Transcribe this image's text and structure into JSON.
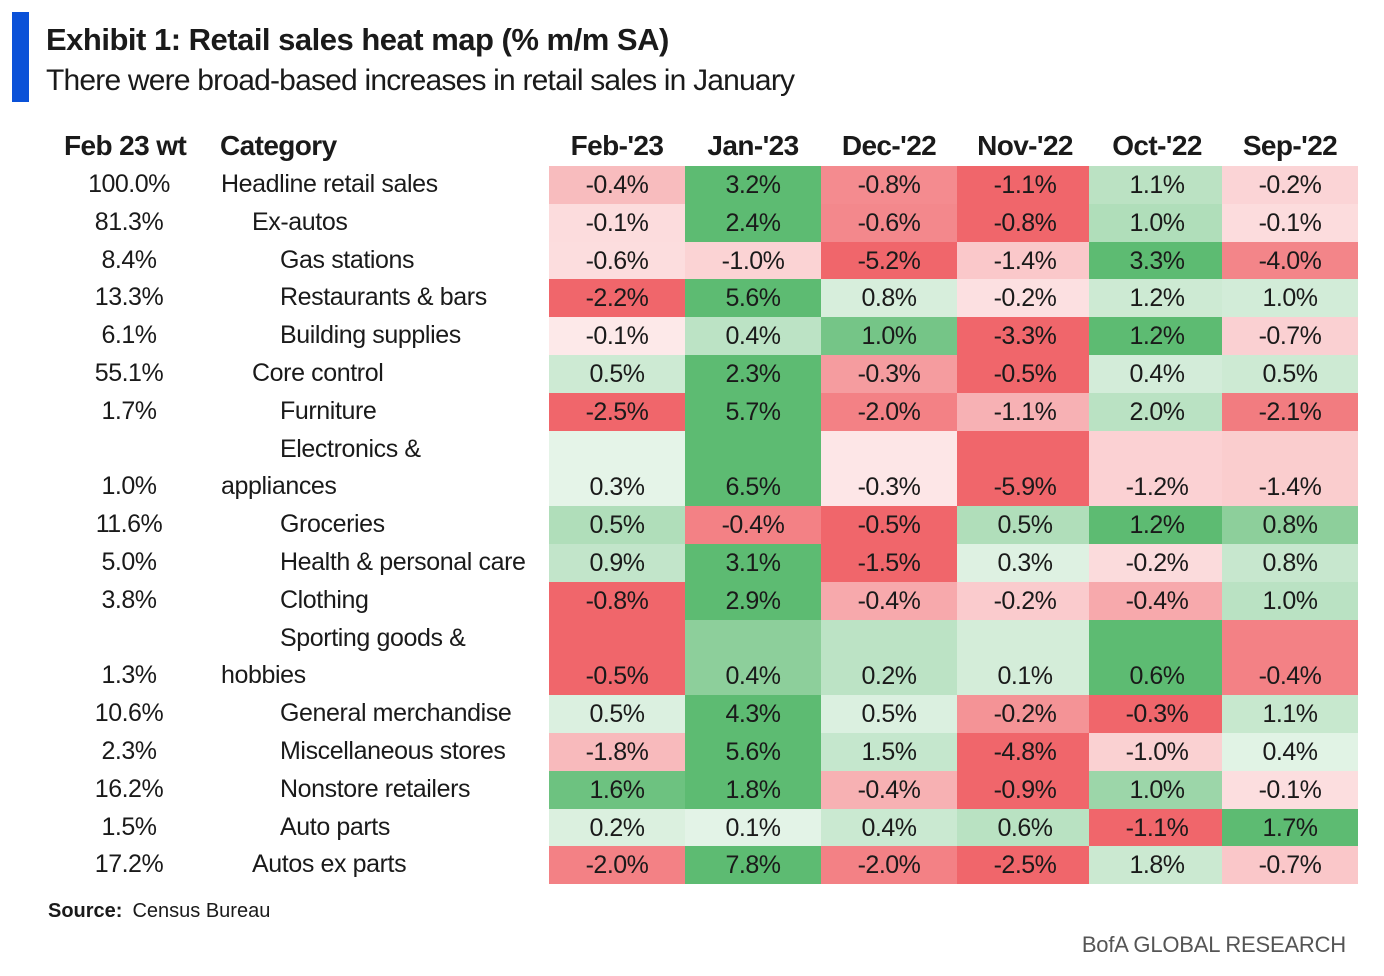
{
  "title": "Exhibit 1: Retail sales heat map (% m/m SA)",
  "subtitle": "There were broad-based increases in retail sales in January",
  "source_label": "Source:",
  "source_text": "Census  Bureau",
  "footer": "BofA GLOBAL RESEARCH",
  "colors": {
    "accent": "#0a51d8",
    "positive_max": "#5dbb72",
    "negative_max": "#f0666b",
    "neutral": "#ffffff"
  },
  "chart_data": {
    "type": "heatmap",
    "weight_header": "Feb 23 wt",
    "category_header": "Category",
    "columns": [
      "Feb-'23",
      "Jan-'23",
      "Dec-'22",
      "Nov-'22",
      "Oct-'22",
      "Sep-'22"
    ],
    "rows": [
      {
        "weight": "100.0%",
        "category": [
          "Headline retail sales"
        ],
        "indent": 0,
        "values": [
          -0.4,
          3.2,
          -0.8,
          -1.1,
          1.1,
          -0.2
        ],
        "labels": [
          "-0.4%",
          "3.2%",
          "-0.8%",
          "-1.1%",
          "1.1%",
          "-0.2%"
        ]
      },
      {
        "weight": "81.3%",
        "category": [
          "Ex-autos"
        ],
        "indent": 1,
        "values": [
          -0.1,
          2.4,
          -0.6,
          -0.8,
          1.0,
          -0.1
        ],
        "labels": [
          "-0.1%",
          "2.4%",
          "-0.6%",
          "-0.8%",
          "1.0%",
          "-0.1%"
        ]
      },
      {
        "weight": "8.4%",
        "category": [
          "Gas stations"
        ],
        "indent": 2,
        "values": [
          -0.6,
          -1.0,
          -5.2,
          -1.4,
          3.3,
          -4.0
        ],
        "labels": [
          "-0.6%",
          "-1.0%",
          "-5.2%",
          "-1.4%",
          "3.3%",
          "-4.0%"
        ]
      },
      {
        "weight": "13.3%",
        "category": [
          "Restaurants & bars"
        ],
        "indent": 2,
        "values": [
          -2.2,
          5.6,
          0.8,
          -0.2,
          1.2,
          1.0
        ],
        "labels": [
          "-2.2%",
          "5.6%",
          "0.8%",
          "-0.2%",
          "1.2%",
          "1.0%"
        ]
      },
      {
        "weight": "6.1%",
        "category": [
          "Building supplies"
        ],
        "indent": 2,
        "values": [
          -0.1,
          0.4,
          1.0,
          -3.3,
          1.2,
          -0.7
        ],
        "labels": [
          "-0.1%",
          "0.4%",
          "1.0%",
          "-3.3%",
          "1.2%",
          "-0.7%"
        ]
      },
      {
        "weight": "55.1%",
        "category": [
          "Core control"
        ],
        "indent": 1,
        "values": [
          0.5,
          2.3,
          -0.3,
          -0.5,
          0.4,
          0.5
        ],
        "labels": [
          "0.5%",
          "2.3%",
          "-0.3%",
          "-0.5%",
          "0.4%",
          "0.5%"
        ]
      },
      {
        "weight": "1.7%",
        "category": [
          "Furniture"
        ],
        "indent": 2,
        "values": [
          -2.5,
          5.7,
          -2.0,
          -1.1,
          2.0,
          -2.1
        ],
        "labels": [
          "-2.5%",
          "5.7%",
          "-2.0%",
          "-1.1%",
          "2.0%",
          "-2.1%"
        ]
      },
      {
        "weight": "1.0%",
        "category": [
          "Electronics &",
          "appliances"
        ],
        "indent": 2,
        "values": [
          0.3,
          6.5,
          -0.3,
          -5.9,
          -1.2,
          -1.4
        ],
        "labels": [
          "0.3%",
          "6.5%",
          "-0.3%",
          "-5.9%",
          "-1.2%",
          "-1.4%"
        ]
      },
      {
        "weight": "11.6%",
        "category": [
          "Groceries"
        ],
        "indent": 2,
        "values": [
          0.5,
          -0.4,
          -0.5,
          0.5,
          1.2,
          0.8
        ],
        "labels": [
          "0.5%",
          "-0.4%",
          "-0.5%",
          "0.5%",
          "1.2%",
          "0.8%"
        ]
      },
      {
        "weight": "5.0%",
        "category": [
          "Health & personal care"
        ],
        "indent": 2,
        "values": [
          0.9,
          3.1,
          -1.5,
          0.3,
          -0.2,
          0.8
        ],
        "labels": [
          "0.9%",
          "3.1%",
          "-1.5%",
          "0.3%",
          "-0.2%",
          "0.8%"
        ]
      },
      {
        "weight": "3.8%",
        "category": [
          "Clothing"
        ],
        "indent": 2,
        "values": [
          -0.8,
          2.9,
          -0.4,
          -0.2,
          -0.4,
          1.0
        ],
        "labels": [
          "-0.8%",
          "2.9%",
          "-0.4%",
          "-0.2%",
          "-0.4%",
          "1.0%"
        ]
      },
      {
        "weight": "1.3%",
        "category": [
          "Sporting goods &",
          "hobbies"
        ],
        "indent": 2,
        "values": [
          -0.5,
          0.4,
          0.2,
          0.1,
          0.6,
          -0.4
        ],
        "labels": [
          "-0.5%",
          "0.4%",
          "0.2%",
          "0.1%",
          "0.6%",
          "-0.4%"
        ]
      },
      {
        "weight": "10.6%",
        "category": [
          "General merchandise"
        ],
        "indent": 2,
        "values": [
          0.5,
          4.3,
          0.5,
          -0.2,
          -0.3,
          1.1
        ],
        "labels": [
          "0.5%",
          "4.3%",
          "0.5%",
          "-0.2%",
          "-0.3%",
          "1.1%"
        ]
      },
      {
        "weight": "2.3%",
        "category": [
          "Miscellaneous stores"
        ],
        "indent": 2,
        "values": [
          -1.8,
          5.6,
          1.5,
          -4.8,
          -1.0,
          0.4
        ],
        "labels": [
          "-1.8%",
          "5.6%",
          "1.5%",
          "-4.8%",
          "-1.0%",
          "0.4%"
        ]
      },
      {
        "weight": "16.2%",
        "category": [
          "Nonstore retailers"
        ],
        "indent": 2,
        "values": [
          1.6,
          1.8,
          -0.4,
          -0.9,
          1.0,
          -0.1
        ],
        "labels": [
          "1.6%",
          "1.8%",
          "-0.4%",
          "-0.9%",
          "1.0%",
          "-0.1%"
        ]
      },
      {
        "weight": "1.5%",
        "category": [
          "Auto parts"
        ],
        "indent": 2,
        "values": [
          0.2,
          0.1,
          0.4,
          0.6,
          -1.1,
          1.7
        ],
        "labels": [
          "0.2%",
          "0.1%",
          "0.4%",
          "0.6%",
          "-1.1%",
          "1.7%"
        ]
      },
      {
        "weight": "17.2%",
        "category": [
          "Autos ex parts"
        ],
        "indent": 1,
        "values": [
          -2.0,
          7.8,
          -2.0,
          -2.5,
          1.8,
          -0.7
        ],
        "labels": [
          "-2.0%",
          "7.8%",
          "-2.0%",
          "-2.5%",
          "1.8%",
          "-0.7%"
        ]
      }
    ]
  }
}
